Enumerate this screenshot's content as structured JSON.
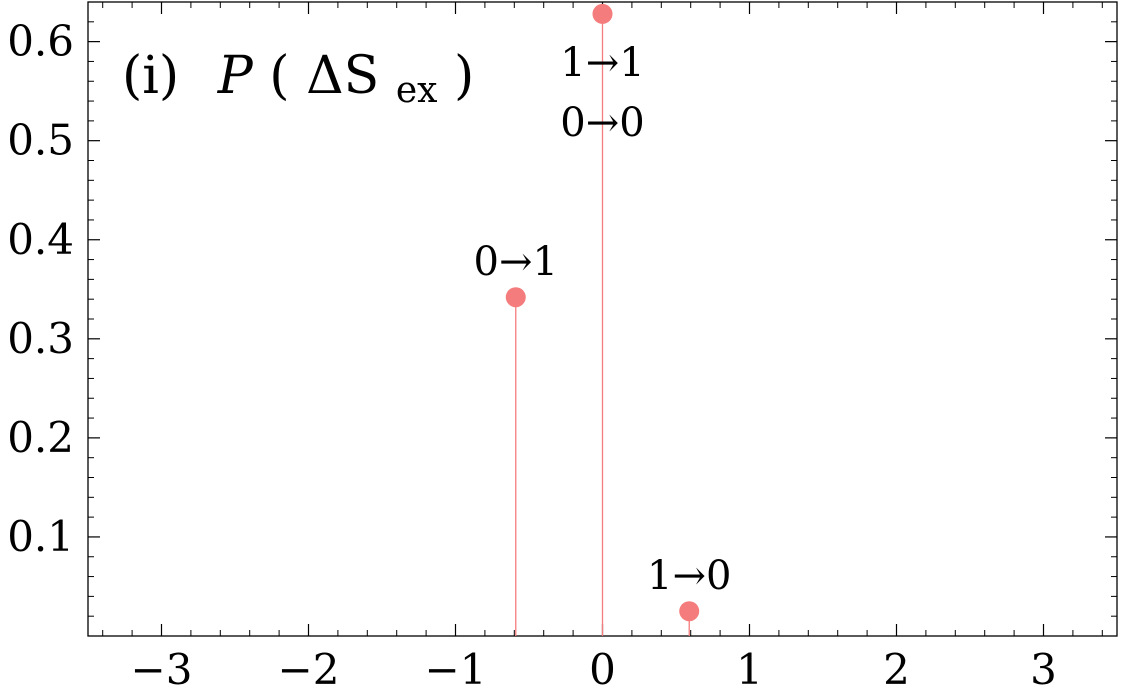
{
  "chart_data": {
    "type": "scatter",
    "style": "stem",
    "title_prefix": "(i)",
    "title_func": "P",
    "title_sym": "ΔS",
    "title_sub": "ex",
    "xlim": [
      -3.5,
      3.5
    ],
    "ylim": [
      0,
      0.64
    ],
    "xticks": [
      -3,
      -2,
      -1,
      0,
      1,
      2,
      3
    ],
    "xtick_labels": [
      "−3",
      "−2",
      "−1",
      "0",
      "1",
      "2",
      "3"
    ],
    "yticks": [
      0.1,
      0.2,
      0.3,
      0.4,
      0.5,
      0.6
    ],
    "ytick_labels": [
      "0.1",
      "0.2",
      "0.3",
      "0.4",
      "0.5",
      "0.6"
    ],
    "series_color": "#f47c7c",
    "points": [
      {
        "x": -0.59,
        "y": 0.342,
        "labels": [
          "0→1"
        ]
      },
      {
        "x": 0.0,
        "y": 0.628,
        "labels": [
          "1→1",
          "0→0"
        ]
      },
      {
        "x": 0.59,
        "y": 0.025,
        "labels": [
          "1→0"
        ]
      }
    ]
  }
}
